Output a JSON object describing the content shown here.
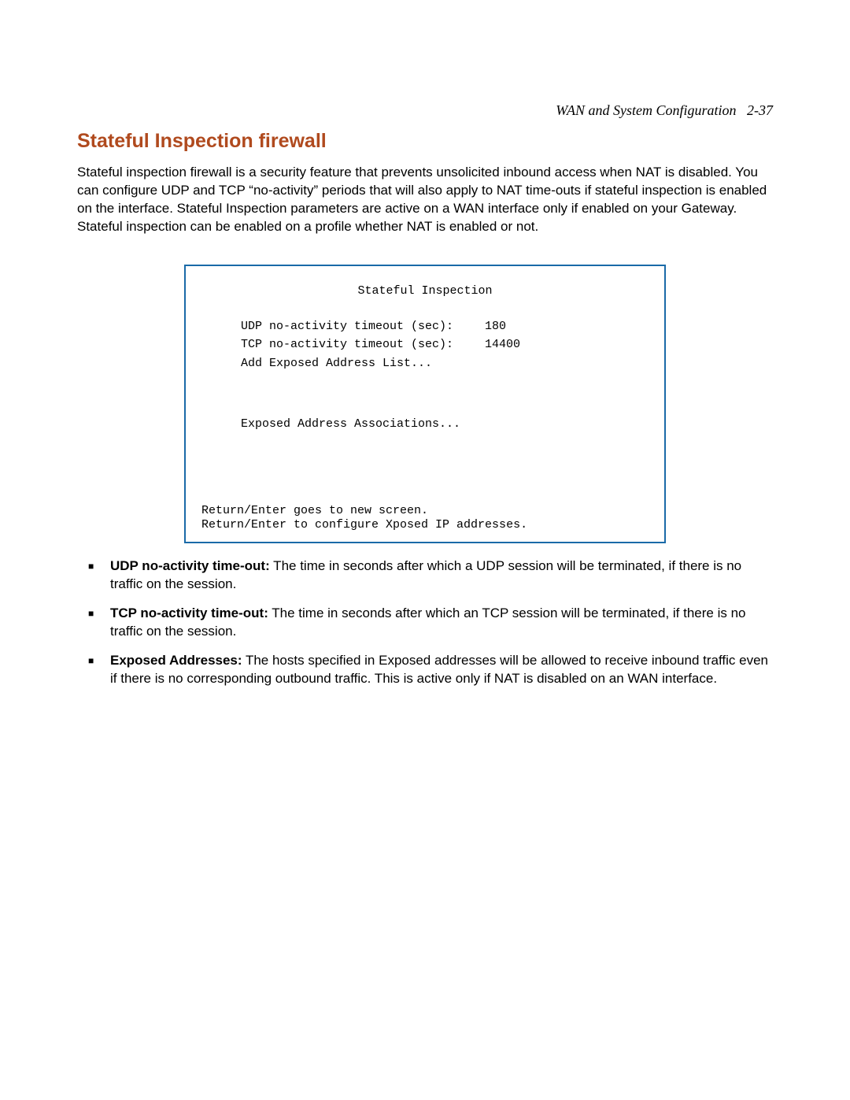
{
  "colors": {
    "heading": "#b04a1e",
    "terminal_border": "#1a6aa8",
    "text": "#000000",
    "background": "#ffffff"
  },
  "typography": {
    "body_font": "Arial",
    "body_size_pt": 12,
    "heading_size_pt": 18,
    "mono_font": "Courier New",
    "mono_size_pt": 11
  },
  "header": {
    "running_title": "WAN and System Configuration",
    "page_ref": "2-37"
  },
  "heading": "Stateful Inspection firewall",
  "intro": "Stateful inspection firewall is a security feature that prevents unsolicited inbound access when NAT is disabled. You can configure UDP and TCP “no-activity” periods that will also apply to NAT time-outs if stateful inspection is enabled on the interface. Stateful Inspection parameters are active on a WAN interface only if enabled on your Gateway. Stateful inspection can be enabled on a profile whether NAT is enabled or not.",
  "terminal": {
    "title": "Stateful Inspection",
    "rows": [
      {
        "label": "UDP no-activity timeout (sec):",
        "value": "180"
      },
      {
        "label": "TCP no-activity timeout (sec):",
        "value": "14400"
      },
      {
        "label": "Add Exposed Address List...",
        "value": ""
      }
    ],
    "row_after_gap": {
      "label": "Exposed Address Associations...",
      "value": ""
    },
    "footer_line_1": "Return/Enter goes to new screen.",
    "footer_line_2": "Return/Enter to configure Xposed IP addresses."
  },
  "bullets": [
    {
      "term": "UDP no-activity time-out:",
      "desc": " The time in seconds after which a UDP session will be terminated, if there is no traffic on the session."
    },
    {
      "term": "TCP no-activity time-out:",
      "desc": " The time in seconds after which an TCP session will be terminated, if there is no traffic on the session."
    },
    {
      "term": "Exposed Addresses:",
      "desc": " The hosts specified in Exposed addresses will be allowed to receive inbound traffic even if there is no corresponding outbound traffic. This is active only if NAT is disabled on an WAN interface."
    }
  ]
}
